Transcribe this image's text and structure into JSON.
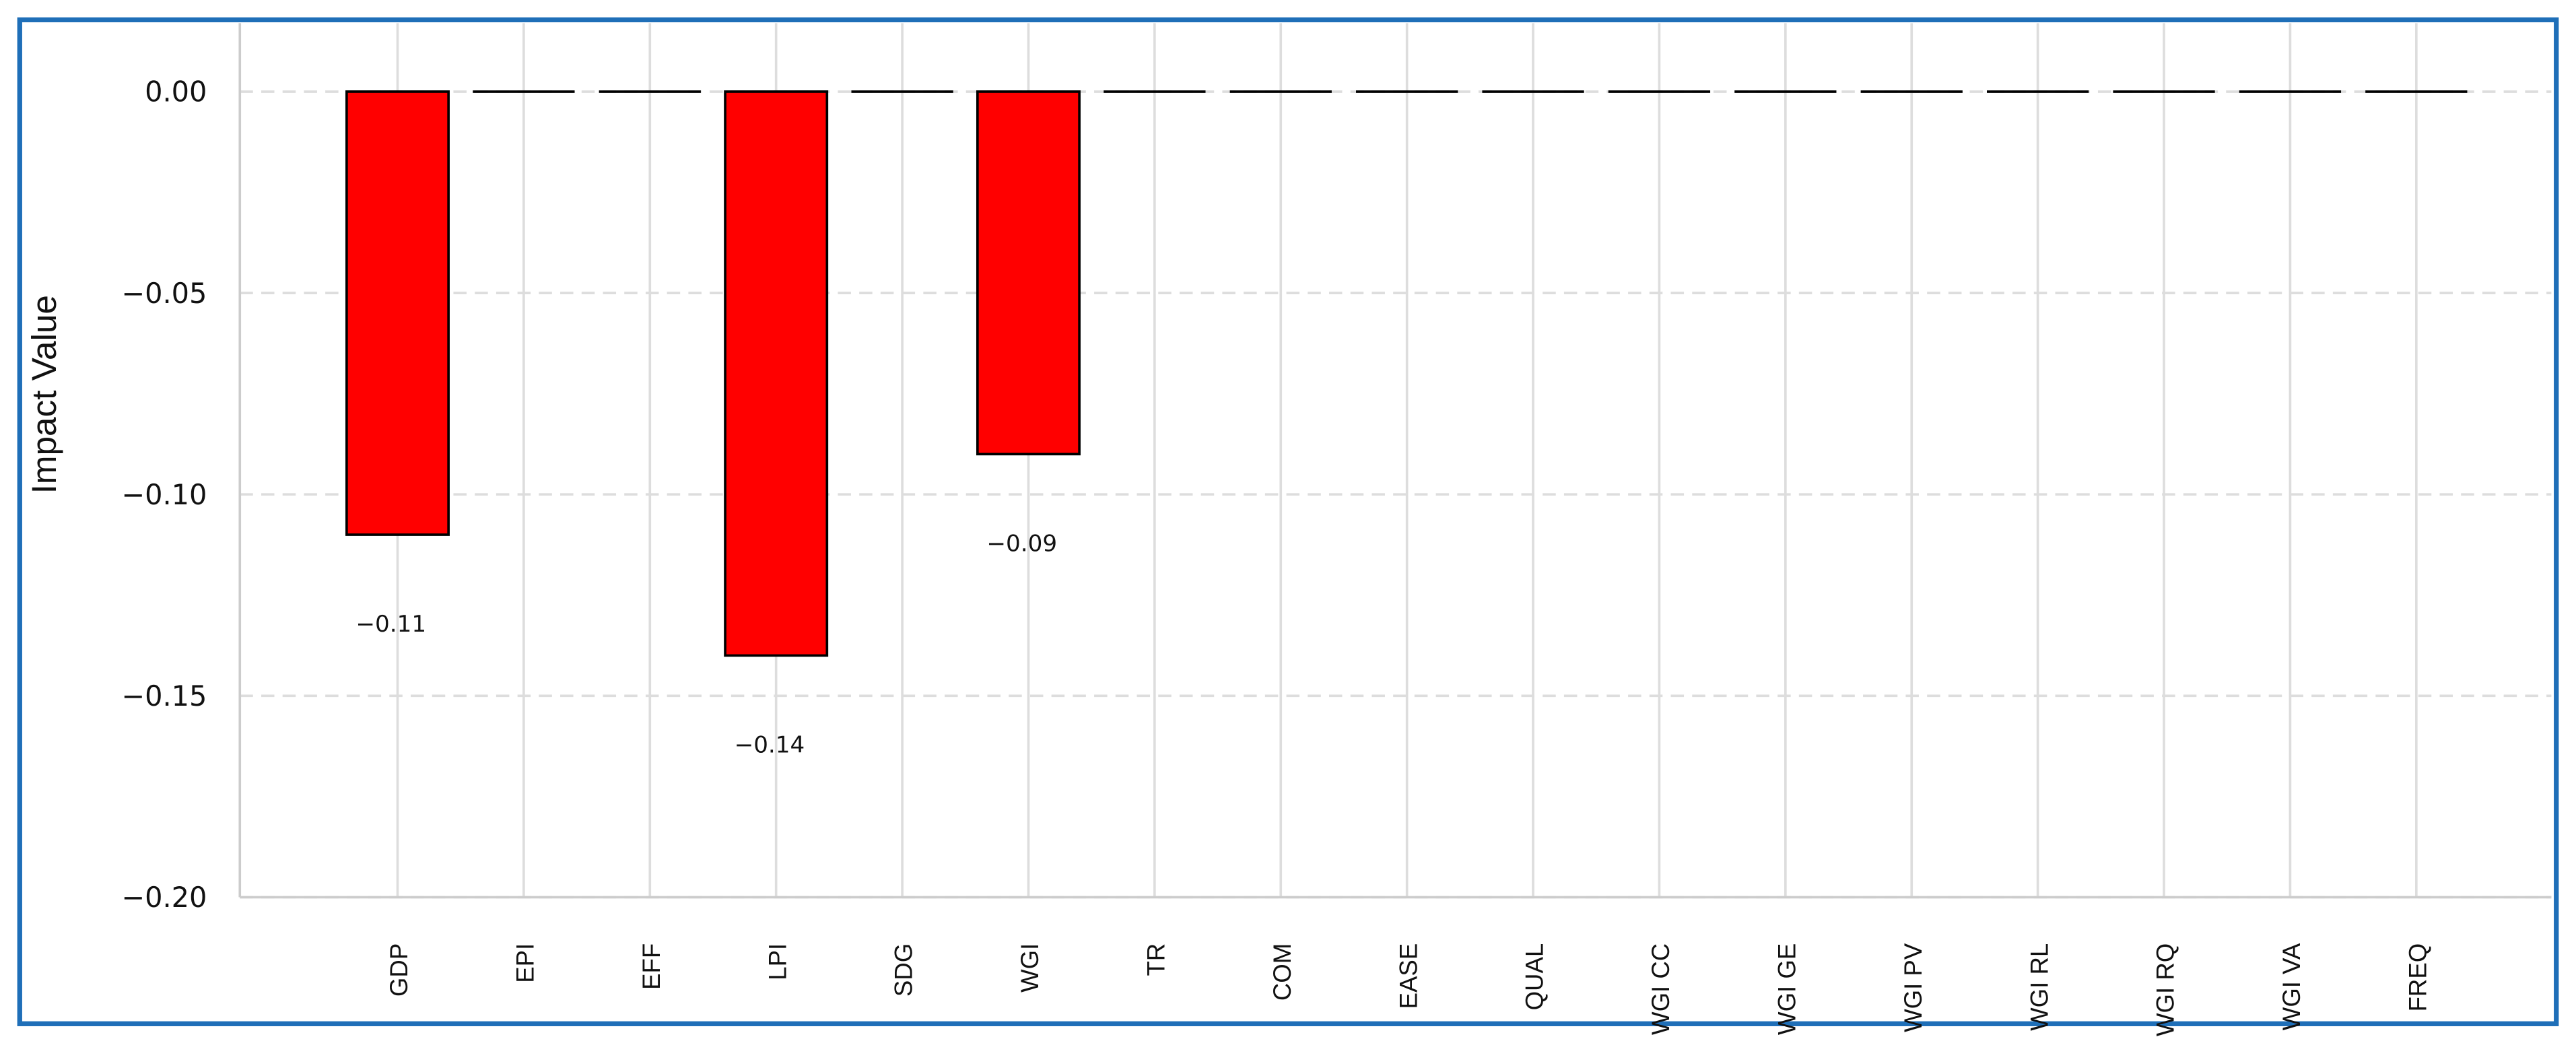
{
  "chart_data": {
    "type": "bar",
    "y_label": "Impact Value",
    "categories": [
      "GDP",
      "EPI",
      "EFF",
      "LPI",
      "SDG",
      "WGI",
      "TR",
      "COM",
      "EASE",
      "QUAL",
      "WGI CC",
      "WGI GE",
      "WGI PV",
      "WGI RL",
      "WGI RQ",
      "WGI VA",
      "FREQ"
    ],
    "values": [
      -0.11,
      0,
      0,
      -0.14,
      0,
      -0.09,
      0,
      0,
      0,
      0,
      0,
      0,
      0,
      0,
      0,
      0,
      0
    ],
    "value_labels": [
      "−0.11",
      null,
      null,
      "−0.14",
      null,
      "−0.09",
      null,
      null,
      null,
      null,
      null,
      null,
      null,
      null,
      null,
      null,
      null
    ],
    "color": "#ff0000",
    "ylim": [
      -0.2,
      0.017
    ],
    "yticks": [
      {
        "value": 0,
        "label": "0.00"
      },
      {
        "value": -0.05,
        "label": "−0.05"
      },
      {
        "value": -0.1,
        "label": "−0.10"
      },
      {
        "value": -0.15,
        "label": "−0.15"
      },
      {
        "value": -0.2,
        "label": "−0.20"
      }
    ],
    "grid": true
  }
}
